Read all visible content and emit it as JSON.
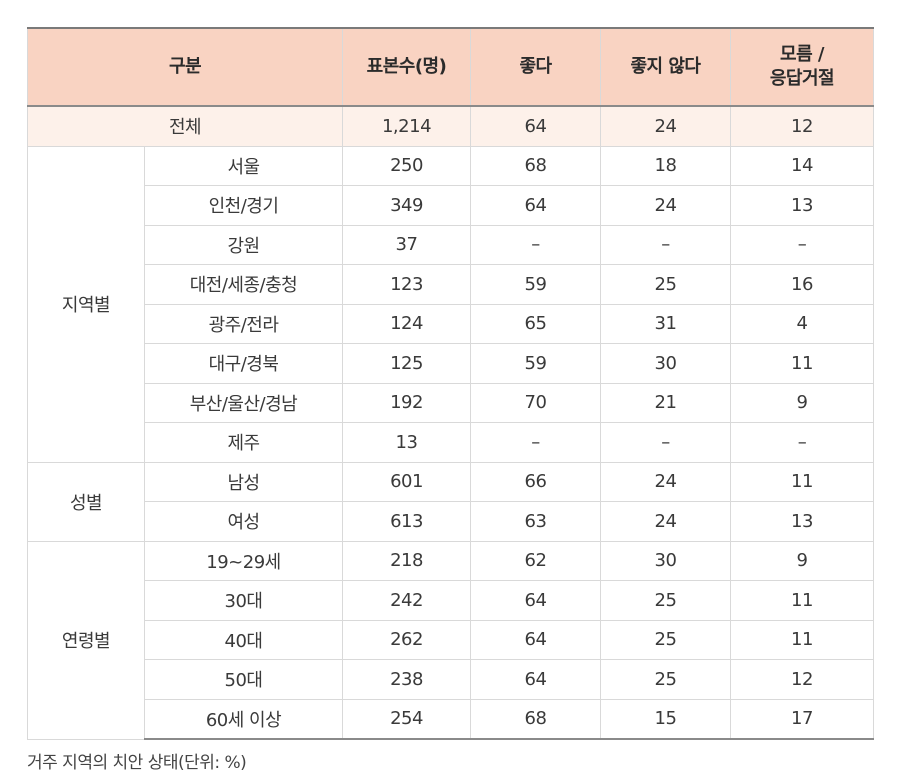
{
  "header": {
    "category": "구분",
    "sample": "표본수(명)",
    "good": "좋다",
    "not_good": "좋지 않다",
    "unknown_line1": "모름 /",
    "unknown_line2": "응답거절"
  },
  "total": {
    "label": "전체",
    "sample": "1,214",
    "good": "64",
    "not_good": "24",
    "unknown": "12"
  },
  "groups": [
    {
      "name": "지역별",
      "rows": [
        {
          "label": "서울",
          "sample": "250",
          "good": "68",
          "not_good": "18",
          "unknown": "14"
        },
        {
          "label": "인천/경기",
          "sample": "349",
          "good": "64",
          "not_good": "24",
          "unknown": "13"
        },
        {
          "label": "강원",
          "sample": "37",
          "good": "–",
          "not_good": "–",
          "unknown": "–"
        },
        {
          "label": "대전/세종/충청",
          "sample": "123",
          "good": "59",
          "not_good": "25",
          "unknown": "16"
        },
        {
          "label": "광주/전라",
          "sample": "124",
          "good": "65",
          "not_good": "31",
          "unknown": "4"
        },
        {
          "label": "대구/경북",
          "sample": "125",
          "good": "59",
          "not_good": "30",
          "unknown": "11"
        },
        {
          "label": "부산/울산/경남",
          "sample": "192",
          "good": "70",
          "not_good": "21",
          "unknown": "9"
        },
        {
          "label": "제주",
          "sample": "13",
          "good": "–",
          "not_good": "–",
          "unknown": "–"
        }
      ]
    },
    {
      "name": "성별",
      "rows": [
        {
          "label": "남성",
          "sample": "601",
          "good": "66",
          "not_good": "24",
          "unknown": "11"
        },
        {
          "label": "여성",
          "sample": "613",
          "good": "63",
          "not_good": "24",
          "unknown": "13"
        }
      ]
    },
    {
      "name": "연령별",
      "rows": [
        {
          "label": "19~29세",
          "sample": "218",
          "good": "62",
          "not_good": "30",
          "unknown": "9"
        },
        {
          "label": "30대",
          "sample": "242",
          "good": "64",
          "not_good": "25",
          "unknown": "11"
        },
        {
          "label": "40대",
          "sample": "262",
          "good": "64",
          "not_good": "25",
          "unknown": "11"
        },
        {
          "label": "50대",
          "sample": "238",
          "good": "64",
          "not_good": "25",
          "unknown": "12"
        },
        {
          "label": "60세 이상",
          "sample": "254",
          "good": "68",
          "not_good": "15",
          "unknown": "17"
        }
      ]
    }
  ],
  "caption": "거주 지역의 치안 상태(단위: %)",
  "colors": {
    "header_bg": "#f9d3c2",
    "total_bg": "#fdf1ea",
    "border": "#d9d9d9"
  }
}
